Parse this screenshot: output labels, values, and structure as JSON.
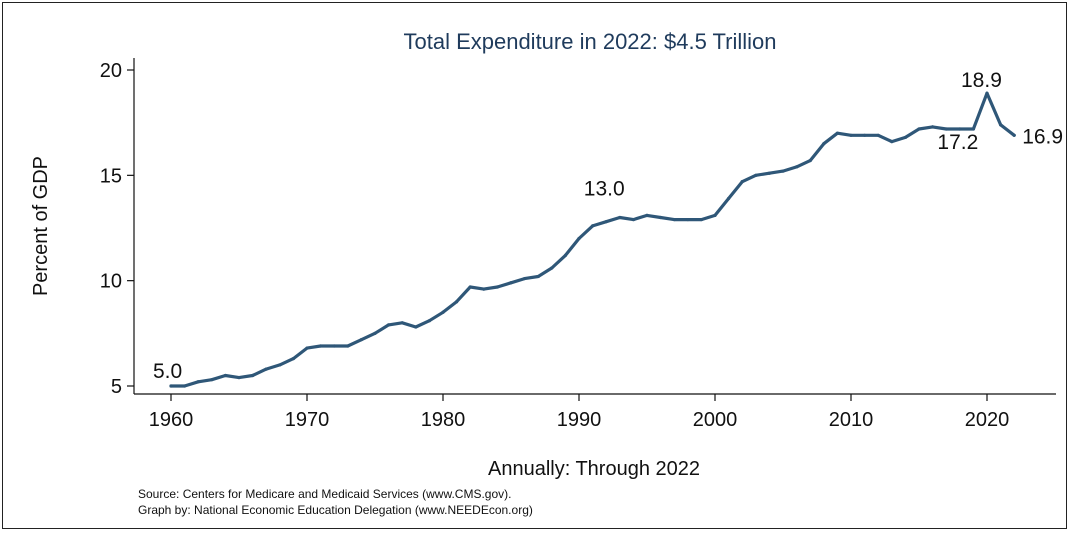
{
  "chart_data": {
    "type": "line",
    "title": "Total Expenditure in 2022: $4.5 Trillion",
    "xlabel": "Annually: Through 2022",
    "ylabel": "Percent of GDP",
    "xlim": [
      1959,
      2025
    ],
    "ylim": [
      4.5,
      20.5
    ],
    "x_ticks": [
      1960,
      1970,
      1980,
      1990,
      2000,
      2010,
      2020
    ],
    "y_ticks": [
      5,
      10,
      15,
      20
    ],
    "grid": false,
    "legend": "none",
    "series": [
      {
        "x": [
          1960,
          1961,
          1962,
          1963,
          1964,
          1965,
          1966,
          1967,
          1968,
          1969,
          1970,
          1971,
          1972,
          1973,
          1974,
          1975,
          1976,
          1977,
          1978,
          1979,
          1980,
          1981,
          1982,
          1983,
          1984,
          1985,
          1986,
          1987,
          1988,
          1989,
          1990,
          1991,
          1992,
          1993,
          1994,
          1995,
          1996,
          1997,
          1998,
          1999,
          2000,
          2001,
          2002,
          2003,
          2004,
          2005,
          2006,
          2007,
          2008,
          2009,
          2010,
          2011,
          2012,
          2013,
          2014,
          2015,
          2016,
          2017,
          2018,
          2019,
          2020,
          2021,
          2022
        ],
        "values": [
          5.0,
          5.0,
          5.2,
          5.3,
          5.5,
          5.4,
          5.5,
          5.8,
          6.0,
          6.3,
          6.8,
          6.9,
          6.9,
          6.9,
          7.2,
          7.5,
          7.9,
          8.0,
          7.8,
          8.1,
          8.5,
          9.0,
          9.7,
          9.6,
          9.7,
          9.9,
          10.1,
          10.2,
          10.6,
          11.2,
          12.0,
          12.6,
          12.8,
          13.0,
          12.9,
          13.1,
          13.0,
          12.9,
          12.9,
          12.9,
          13.1,
          13.9,
          14.7,
          15.0,
          15.1,
          15.2,
          15.4,
          15.7,
          16.5,
          17.0,
          16.9,
          16.9,
          16.9,
          16.6,
          16.8,
          17.2,
          17.3,
          17.2,
          17.2,
          17.2,
          18.9,
          17.4,
          16.9
        ],
        "color": "#2f5778"
      }
    ],
    "annotations": [
      {
        "text": "5.0",
        "x": 1960,
        "y": 5.0
      },
      {
        "text": "13.0",
        "x": 1993,
        "y": 13.0
      },
      {
        "text": "18.9",
        "x": 2020,
        "y": 18.9
      },
      {
        "text": "17.2",
        "x": 2019,
        "y": 17.2
      },
      {
        "text": "16.9",
        "x": 2022,
        "y": 16.9
      }
    ]
  },
  "notes": {
    "source": "Source: Centers for Medicare and Medicaid Services (www.CMS.gov).",
    "graph_by": "Graph by: National Economic Education Delegation (www.NEEDEcon.org)"
  }
}
